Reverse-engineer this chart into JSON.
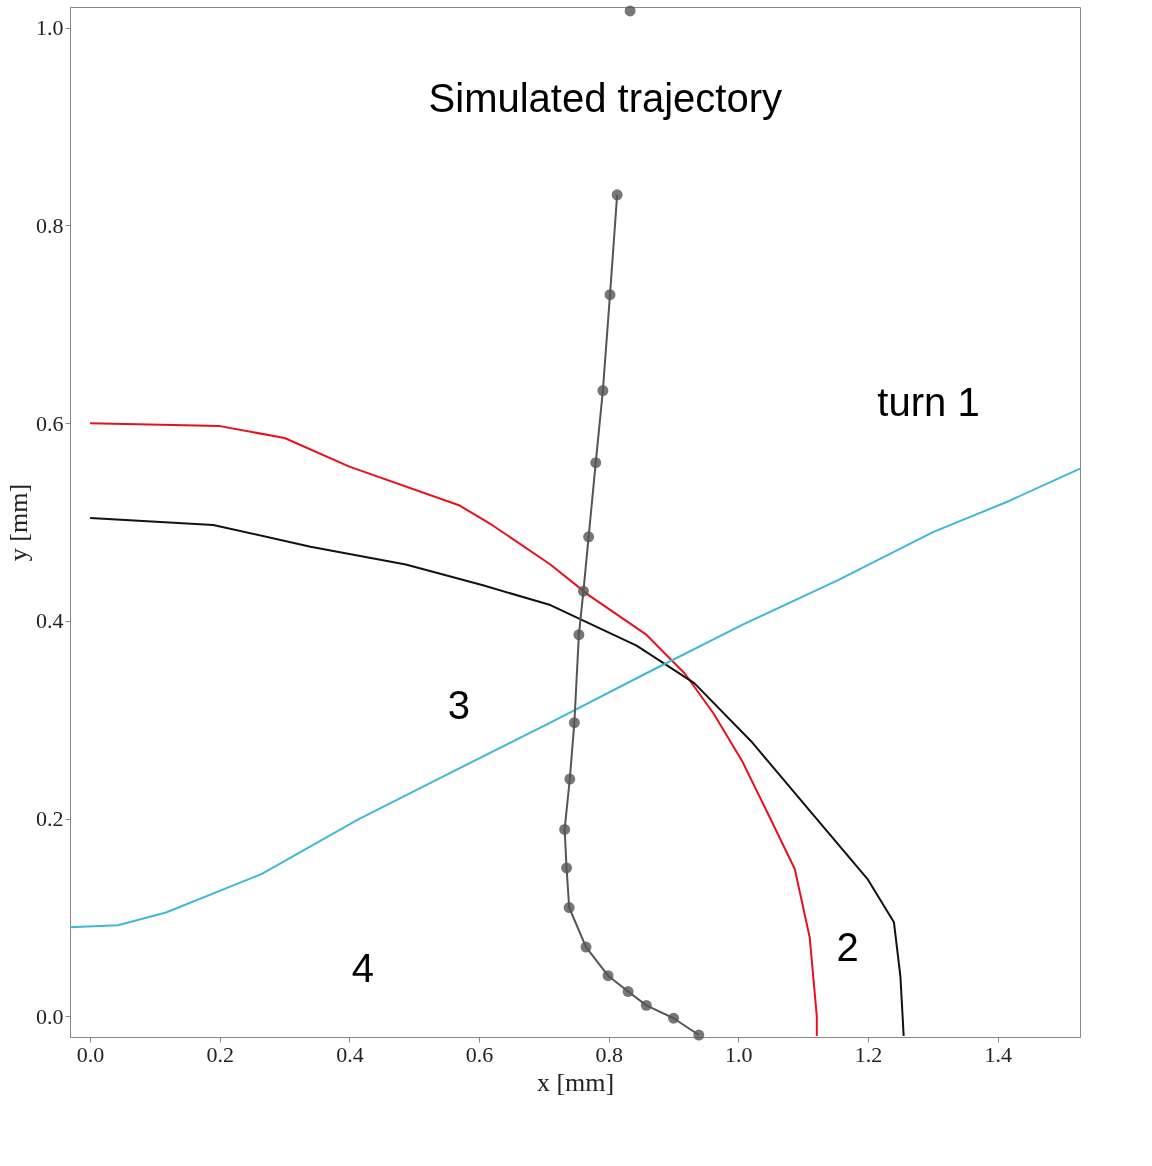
{
  "chart_data": {
    "type": "line",
    "xlabel": "x [mm]",
    "ylabel": "y [mm]",
    "xlim": [
      -0.031,
      1.527
    ],
    "ylim": [
      -0.021,
      1.021
    ],
    "xticks": [
      {
        "value": 0,
        "label": "0.0"
      },
      0.2,
      0.4,
      0.6,
      0.8,
      {
        "value": 1,
        "label": "1.0"
      },
      1.2,
      1.4
    ],
    "yticks": [
      {
        "value": 0,
        "label": "0.0"
      },
      0.2,
      0.4,
      0.6,
      0.8,
      {
        "value": 1,
        "label": "1.0"
      }
    ],
    "grid": false,
    "series": [
      {
        "color": "#e8101c",
        "x": [
          0.0,
          0.2,
          0.3,
          0.4,
          0.569,
          0.62,
          0.71,
          0.769,
          0.858,
          0.917,
          0.961,
          1.006,
          1.05,
          1.087,
          1.11,
          1.121,
          1.121
        ],
        "values": [
          0.6,
          0.597,
          0.585,
          0.556,
          0.517,
          0.497,
          0.457,
          0.426,
          0.386,
          0.347,
          0.307,
          0.258,
          0.199,
          0.149,
          0.08,
          0.0,
          -0.02
        ]
      },
      {
        "color": "#111111",
        "x": [
          0.0,
          0.19,
          0.34,
          0.487,
          0.606,
          0.71,
          0.843,
          0.932,
          1.02,
          1.11,
          1.199,
          1.24,
          1.25,
          1.255
        ],
        "values": [
          0.504,
          0.497,
          0.475,
          0.457,
          0.436,
          0.416,
          0.375,
          0.337,
          0.278,
          0.208,
          0.139,
          0.095,
          0.04,
          -0.02
        ]
      },
      {
        "color": "#3fb8d8",
        "x": [
          -0.031,
          0.043,
          0.117,
          0.265,
          0.413,
          0.561,
          0.71,
          0.858,
          1.006,
          1.153,
          1.301,
          1.413,
          1.527
        ],
        "values": [
          0.09,
          0.092,
          0.105,
          0.144,
          0.199,
          0.248,
          0.297,
          0.347,
          0.396,
          0.441,
          0.49,
          0.52,
          0.554
        ]
      },
      {
        "color": "#555555",
        "marker": "circle",
        "x": [
          0.833,
          0.823,
          0.813,
          0.802,
          0.791,
          0.78,
          0.769,
          0.761,
          0.754,
          0.747,
          0.74,
          0.732,
          0.735,
          0.739,
          0.765,
          0.799,
          0.83,
          0.858,
          0.9,
          0.939
        ],
        "values": [
          1.017,
          null,
          0.831,
          0.73,
          0.633,
          0.56,
          0.485,
          0.43,
          0.386,
          0.297,
          0.24,
          0.189,
          0.15,
          0.11,
          0.07,
          0.041,
          0.025,
          0.011,
          -0.002,
          -0.019
        ]
      }
    ],
    "annotations": [
      "Simulated trajectory",
      "turn 1",
      "3",
      "4",
      "2"
    ]
  }
}
